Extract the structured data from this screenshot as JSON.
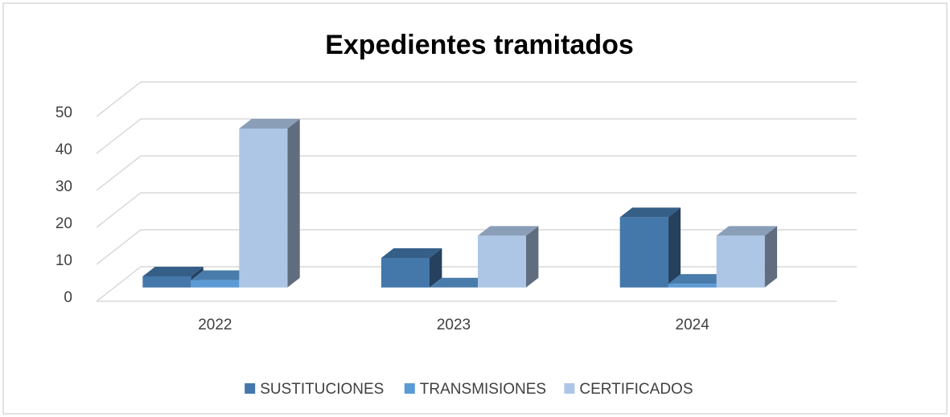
{
  "chart_data": {
    "type": "bar3d",
    "title": "Expedientes tramitados",
    "categories": [
      "2022",
      "2023",
      "2024"
    ],
    "series": [
      {
        "name": "SUSTITUCIONES",
        "color": "#4477aa",
        "values": [
          3,
          8,
          19
        ]
      },
      {
        "name": "TRANSMISIONES",
        "color": "#5b9bd5",
        "values": [
          2,
          0,
          1
        ]
      },
      {
        "name": "CERTIFICADOS",
        "color": "#adc6e6",
        "values": [
          43,
          14,
          14
        ]
      }
    ],
    "ylim": [
      0,
      50
    ],
    "yticks": [
      0,
      10,
      20,
      30,
      40,
      50
    ],
    "grid": true,
    "legend": "bottom"
  }
}
